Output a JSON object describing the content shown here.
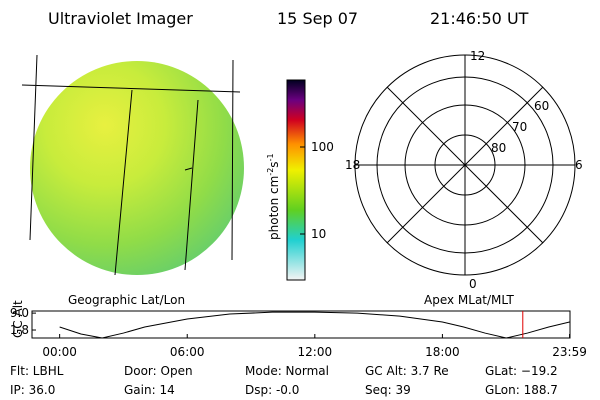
{
  "header": {
    "instrument": "Ultraviolet Imager",
    "date": "15 Sep 07",
    "time": "21:46:50 UT"
  },
  "colorbar": {
    "label_parts": [
      "photon cm",
      "-2",
      "s",
      "-1"
    ],
    "ticks": [
      "100",
      "10"
    ]
  },
  "panels": {
    "left_caption": "Geographic Lat/Lon",
    "right_caption": "Apex MLat/MLT"
  },
  "polar": {
    "hours": [
      "12",
      "18",
      "6",
      "0"
    ],
    "rings": [
      "60",
      "70",
      "80"
    ]
  },
  "chart_data": {
    "type": "line",
    "ylabel": "GC Alt",
    "x": [
      0,
      1,
      2,
      3,
      4,
      6,
      8,
      10,
      12,
      14,
      16,
      18,
      19,
      20,
      21,
      22,
      23,
      23.98
    ],
    "series": [
      {
        "color": "#000000",
        "values": [
          3.1,
          0.1,
          -1.6,
          0.5,
          3.1,
          6.5,
          8.6,
          9.4,
          9.4,
          9.0,
          7.7,
          5.2,
          3.1,
          0.5,
          -1.6,
          0.5,
          3.1,
          5.2
        ]
      }
    ],
    "xlim": [
      -1.3,
      24
    ],
    "ylim": [
      -1.6,
      9.9
    ],
    "xticks": [
      {
        "value": 0,
        "label": "00:00"
      },
      {
        "value": 6,
        "label": "06:00"
      },
      {
        "value": 12,
        "label": "12:00"
      },
      {
        "value": 18,
        "label": "18:00"
      },
      {
        "value": 23.98,
        "label": "23:59"
      }
    ],
    "yticks": [
      {
        "value": 9,
        "label": "9.0"
      },
      1.8
    ],
    "marker_x": 21.78,
    "marker_color": "#e00000"
  },
  "footer": {
    "rows": [
      [
        "Flt: LBHL",
        "Door: Open",
        "Mode: Normal",
        "GC Alt: 3.7 Re",
        "GLat: −19.2"
      ],
      [
        "IP: 36.0",
        "Gain: 14",
        "Dsp:  -0.0",
        "Seq: 39",
        "GLon: 188.7"
      ]
    ]
  }
}
